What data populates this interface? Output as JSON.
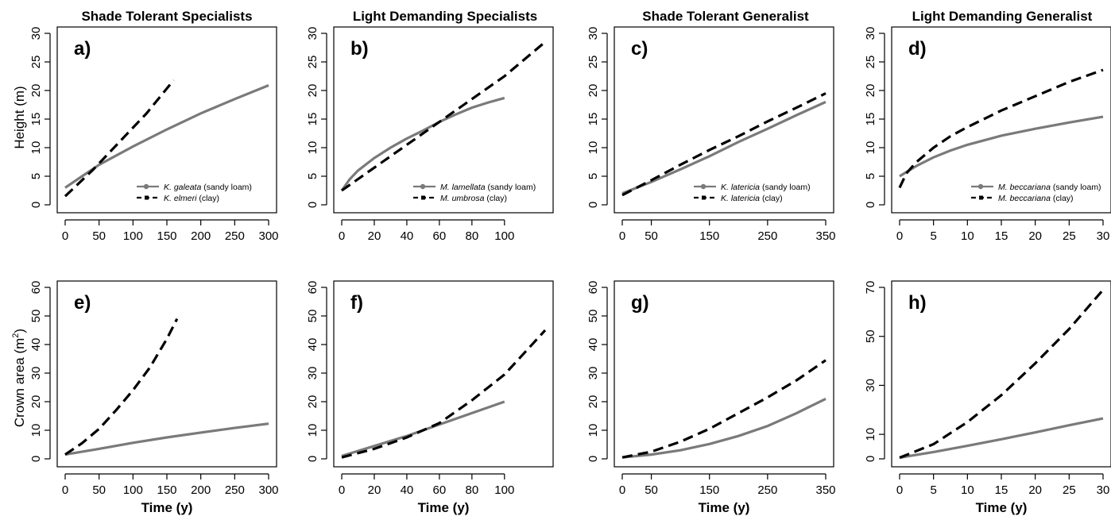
{
  "figure": {
    "column_titles": [
      "Shade Tolerant Specialists",
      "Light Demanding Specialists",
      "Shade Tolerant Generalist",
      "Light Demanding Generalist"
    ],
    "row_ylabels": [
      "Height (m)",
      "Crown area (m",
      "2",
      ")"
    ],
    "xlabel": "Time (y)"
  },
  "colors": {
    "series_solid": "#7a7a7a",
    "series_dashed": "#000000",
    "frame": "#000000"
  },
  "chart_data": [
    {
      "panel": "a)",
      "type": "line",
      "title": "Shade Tolerant Specialists",
      "ylabel": "Height (m)",
      "xlabel": "",
      "xlim": [
        0,
        300
      ],
      "ylim": [
        0,
        30
      ],
      "xticks": [
        0,
        50,
        100,
        150,
        200,
        250,
        300
      ],
      "yticks": [
        0,
        5,
        10,
        15,
        20,
        25,
        30
      ],
      "legend": {
        "position": "bottom-right"
      },
      "series": [
        {
          "name_italic": "K. galeata",
          "name_suffix": " (sandy loam)",
          "style": "solid",
          "points": [
            [
              0,
              3
            ],
            [
              25,
              5
            ],
            [
              50,
              7
            ],
            [
              100,
              10.2
            ],
            [
              150,
              13.2
            ],
            [
              200,
              16
            ],
            [
              250,
              18.5
            ],
            [
              300,
              20.9
            ]
          ]
        },
        {
          "name_italic": "K. elmeri",
          "name_suffix": " (clay)",
          "style": "dashed",
          "points": [
            [
              0,
              1.5
            ],
            [
              40,
              6
            ],
            [
              80,
              11
            ],
            [
              120,
              16
            ],
            [
              160,
              21.8
            ]
          ]
        }
      ]
    },
    {
      "panel": "b)",
      "type": "line",
      "title": "Light Demanding Specialists",
      "ylabel": "",
      "xlabel": "",
      "xlim": [
        0,
        125
      ],
      "ylim": [
        0,
        30
      ],
      "xticks": [
        0,
        20,
        40,
        60,
        80,
        100
      ],
      "yticks": [
        0,
        5,
        10,
        15,
        20,
        25,
        30
      ],
      "legend": {
        "position": "bottom-right"
      },
      "series": [
        {
          "name_italic": "M. lamellata",
          "name_suffix": " (sandy loam)",
          "style": "solid",
          "points": [
            [
              0,
              2.5
            ],
            [
              5,
              4.5
            ],
            [
              10,
              6
            ],
            [
              20,
              8.2
            ],
            [
              30,
              10
            ],
            [
              40,
              11.6
            ],
            [
              50,
              13
            ],
            [
              60,
              14.5
            ],
            [
              70,
              15.8
            ],
            [
              80,
              17
            ],
            [
              90,
              17.9
            ],
            [
              100,
              18.7
            ]
          ]
        },
        {
          "name_italic": "M. umbrosa",
          "name_suffix": " (clay)",
          "style": "dashed",
          "points": [
            [
              0,
              2.5
            ],
            [
              25,
              7.5
            ],
            [
              50,
              12.5
            ],
            [
              75,
              17.5
            ],
            [
              100,
              22.5
            ],
            [
              125,
              28.5
            ]
          ]
        }
      ]
    },
    {
      "panel": "c)",
      "type": "line",
      "title": "Shade Tolerant Generalist",
      "ylabel": "",
      "xlabel": "",
      "xlim": [
        0,
        350
      ],
      "ylim": [
        0,
        30
      ],
      "xticks": [
        0,
        50,
        150,
        250,
        350
      ],
      "yticks": [
        0,
        5,
        10,
        15,
        20,
        25,
        30
      ],
      "legend": {
        "position": "bottom-right"
      },
      "series": [
        {
          "name_italic": "K. latericia",
          "name_suffix": " (sandy loam)",
          "style": "solid",
          "points": [
            [
              0,
              2
            ],
            [
              50,
              4
            ],
            [
              100,
              6.2
            ],
            [
              150,
              8.5
            ],
            [
              200,
              11
            ],
            [
              250,
              13.3
            ],
            [
              300,
              15.7
            ],
            [
              350,
              18
            ]
          ]
        },
        {
          "name_italic": "K. latericia",
          "name_suffix": " (clay)",
          "style": "dashed",
          "points": [
            [
              0,
              1.7
            ],
            [
              50,
              4.3
            ],
            [
              100,
              7
            ],
            [
              150,
              9.6
            ],
            [
              200,
              12
            ],
            [
              250,
              14.6
            ],
            [
              300,
              17
            ],
            [
              350,
              19.5
            ]
          ]
        }
      ]
    },
    {
      "panel": "d)",
      "type": "line",
      "title": "Light Demanding Generalist",
      "ylabel": "",
      "xlabel": "",
      "xlim": [
        0,
        30
      ],
      "ylim": [
        0,
        30
      ],
      "xticks": [
        0,
        5,
        10,
        15,
        20,
        25,
        30
      ],
      "yticks": [
        0,
        5,
        10,
        15,
        20,
        25,
        30
      ],
      "legend": {
        "position": "bottom-right"
      },
      "series": [
        {
          "name_italic": "M. beccariana",
          "name_suffix": " (sandy loam)",
          "style": "solid",
          "points": [
            [
              0,
              5
            ],
            [
              2.5,
              6.8
            ],
            [
              5,
              8.3
            ],
            [
              7.5,
              9.5
            ],
            [
              10,
              10.5
            ],
            [
              15,
              12.1
            ],
            [
              20,
              13.3
            ],
            [
              25,
              14.4
            ],
            [
              30,
              15.4
            ]
          ]
        },
        {
          "name_italic": "M. beccariana",
          "name_suffix": " (clay)",
          "style": "dashed",
          "points": [
            [
              0,
              3
            ],
            [
              1,
              5.5
            ],
            [
              2.5,
              7.5
            ],
            [
              5,
              10
            ],
            [
              7.5,
              12
            ],
            [
              10,
              13.6
            ],
            [
              15,
              16.5
            ],
            [
              20,
              19
            ],
            [
              25,
              21.5
            ],
            [
              30,
              23.6
            ]
          ]
        }
      ]
    },
    {
      "panel": "e)",
      "type": "line",
      "title": "",
      "ylabel": "Crown area (m²)",
      "xlabel": "Time (y)",
      "xlim": [
        0,
        300
      ],
      "ylim": [
        0,
        60
      ],
      "xticks": [
        0,
        50,
        100,
        150,
        200,
        250,
        300
      ],
      "yticks": [
        0,
        10,
        20,
        30,
        40,
        50,
        60
      ],
      "series": [
        {
          "style": "solid",
          "points": [
            [
              0,
              1.5
            ],
            [
              50,
              3.5
            ],
            [
              100,
              5.6
            ],
            [
              150,
              7.5
            ],
            [
              200,
              9.2
            ],
            [
              250,
              10.8
            ],
            [
              300,
              12.3
            ]
          ]
        },
        {
          "style": "dashed",
          "points": [
            [
              0,
              1.5
            ],
            [
              25,
              5.5
            ],
            [
              50,
              10.5
            ],
            [
              75,
              17
            ],
            [
              100,
              24
            ],
            [
              125,
              32
            ],
            [
              150,
              42
            ],
            [
              165,
              49
            ]
          ]
        }
      ]
    },
    {
      "panel": "f)",
      "type": "line",
      "title": "",
      "ylabel": "",
      "xlabel": "Time (y)",
      "xlim": [
        0,
        125
      ],
      "ylim": [
        0,
        60
      ],
      "xticks": [
        0,
        20,
        40,
        60,
        80,
        100
      ],
      "yticks": [
        0,
        10,
        20,
        30,
        40,
        50,
        60
      ],
      "series": [
        {
          "style": "solid",
          "points": [
            [
              0,
              1
            ],
            [
              20,
              4.5
            ],
            [
              40,
              8
            ],
            [
              60,
              12
            ],
            [
              80,
              16
            ],
            [
              100,
              20
            ]
          ]
        },
        {
          "style": "dashed",
          "points": [
            [
              0,
              0.5
            ],
            [
              20,
              3.5
            ],
            [
              40,
              7.5
            ],
            [
              60,
              12.5
            ],
            [
              80,
              20.5
            ],
            [
              100,
              29.5
            ],
            [
              125,
              45
            ]
          ]
        }
      ]
    },
    {
      "panel": "g)",
      "type": "line",
      "title": "",
      "ylabel": "",
      "xlabel": "Time (y)",
      "xlim": [
        0,
        350
      ],
      "ylim": [
        0,
        60
      ],
      "xticks": [
        0,
        50,
        150,
        250,
        350
      ],
      "yticks": [
        0,
        10,
        20,
        30,
        40,
        50,
        60
      ],
      "series": [
        {
          "style": "solid",
          "points": [
            [
              0,
              0.5
            ],
            [
              50,
              1.5
            ],
            [
              100,
              3
            ],
            [
              150,
              5.2
            ],
            [
              200,
              8
            ],
            [
              250,
              11.5
            ],
            [
              300,
              16
            ],
            [
              350,
              21
            ]
          ]
        },
        {
          "style": "dashed",
          "points": [
            [
              0,
              0.5
            ],
            [
              50,
              2.5
            ],
            [
              100,
              6
            ],
            [
              150,
              10.5
            ],
            [
              200,
              16
            ],
            [
              250,
              21.5
            ],
            [
              300,
              27.5
            ],
            [
              350,
              34.5
            ]
          ]
        }
      ]
    },
    {
      "panel": "h)",
      "type": "line",
      "title": "",
      "ylabel": "",
      "xlabel": "Time (y)",
      "xlim": [
        0,
        30
      ],
      "ylim": [
        0,
        70
      ],
      "xticks": [
        0,
        5,
        10,
        15,
        20,
        25,
        30
      ],
      "yticks": [
        0,
        10,
        30,
        50,
        70
      ],
      "series": [
        {
          "style": "solid",
          "points": [
            [
              0,
              0.5
            ],
            [
              5,
              2.8
            ],
            [
              10,
              5.3
            ],
            [
              15,
              8
            ],
            [
              20,
              10.8
            ],
            [
              25,
              13.7
            ],
            [
              30,
              16.5
            ]
          ]
        },
        {
          "style": "dashed",
          "points": [
            [
              0,
              0.5
            ],
            [
              5,
              6
            ],
            [
              10,
              15
            ],
            [
              15,
              26
            ],
            [
              20,
              39
            ],
            [
              25,
              53
            ],
            [
              30,
              69
            ]
          ]
        }
      ]
    }
  ]
}
